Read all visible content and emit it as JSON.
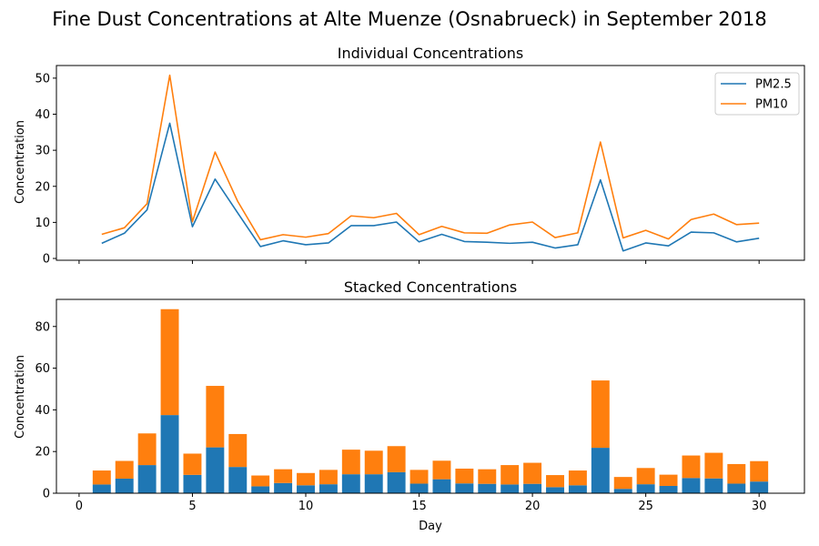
{
  "figure": {
    "suptitle": "Fine Dust Concentrations at Alte Muenze (Osnabrueck) in September 2018"
  },
  "chart_data": [
    {
      "type": "line",
      "title": "Individual Concentrations",
      "xlabel": "",
      "ylabel": "Concentration",
      "xlim": [
        -1,
        32
      ],
      "ylim": [
        -0.5,
        53.5
      ],
      "xticks": [
        0,
        5,
        10,
        15,
        20,
        25,
        30
      ],
      "yticks": [
        0,
        10,
        20,
        30,
        40,
        50
      ],
      "show_xtick_labels": false,
      "grid": false,
      "legend": "top-right",
      "x": [
        1,
        2,
        3,
        4,
        5,
        6,
        7,
        8,
        9,
        10,
        11,
        12,
        13,
        14,
        15,
        16,
        17,
        18,
        19,
        20,
        21,
        22,
        23,
        24,
        25,
        26,
        27,
        28,
        29,
        30
      ],
      "series": [
        {
          "name": "PM2.5",
          "color": "#1f77b4",
          "values": [
            4.2,
            7.0,
            13.5,
            37.5,
            8.8,
            22.0,
            12.6,
            3.3,
            4.9,
            3.8,
            4.3,
            9.1,
            9.1,
            10.1,
            4.6,
            6.7,
            4.7,
            4.5,
            4.2,
            4.5,
            2.9,
            3.8,
            21.8,
            2.1,
            4.3,
            3.5,
            7.3,
            7.1,
            4.6,
            5.6
          ]
        },
        {
          "name": "PM10",
          "color": "#ff7f0e",
          "values": [
            6.7,
            8.5,
            15.2,
            50.8,
            10.2,
            29.5,
            15.8,
            5.2,
            6.6,
            5.9,
            6.9,
            11.8,
            11.3,
            12.5,
            6.6,
            8.9,
            7.1,
            7.0,
            9.3,
            10.1,
            5.8,
            7.1,
            32.3,
            5.7,
            7.8,
            5.4,
            10.8,
            12.3,
            9.4,
            9.8
          ]
        }
      ]
    },
    {
      "type": "bar",
      "stacked": true,
      "title": "Stacked Concentrations",
      "xlabel": "Day",
      "ylabel": "Concentration",
      "xlim": [
        -1,
        32
      ],
      "ylim": [
        0,
        93
      ],
      "xticks": [
        0,
        5,
        10,
        15,
        20,
        25,
        30
      ],
      "yticks": [
        0,
        20,
        40,
        60,
        80
      ],
      "grid": false,
      "x": [
        1,
        2,
        3,
        4,
        5,
        6,
        7,
        8,
        9,
        10,
        11,
        12,
        13,
        14,
        15,
        16,
        17,
        18,
        19,
        20,
        21,
        22,
        23,
        24,
        25,
        26,
        27,
        28,
        29,
        30
      ],
      "series": [
        {
          "name": "PM2.5",
          "color": "#1f77b4",
          "values": [
            4.2,
            7.0,
            13.5,
            37.5,
            8.8,
            22.0,
            12.6,
            3.3,
            4.9,
            3.8,
            4.3,
            9.1,
            9.1,
            10.1,
            4.6,
            6.7,
            4.7,
            4.5,
            4.2,
            4.5,
            2.9,
            3.8,
            21.8,
            2.1,
            4.3,
            3.5,
            7.3,
            7.1,
            4.6,
            5.6
          ]
        },
        {
          "name": "PM10",
          "color": "#ff7f0e",
          "values": [
            6.7,
            8.5,
            15.2,
            50.8,
            10.2,
            29.5,
            15.8,
            5.2,
            6.6,
            5.9,
            6.9,
            11.8,
            11.3,
            12.5,
            6.6,
            8.9,
            7.1,
            7.0,
            9.3,
            10.1,
            5.8,
            7.1,
            32.3,
            5.7,
            7.8,
            5.4,
            10.8,
            12.3,
            9.4,
            9.8
          ]
        }
      ]
    }
  ]
}
